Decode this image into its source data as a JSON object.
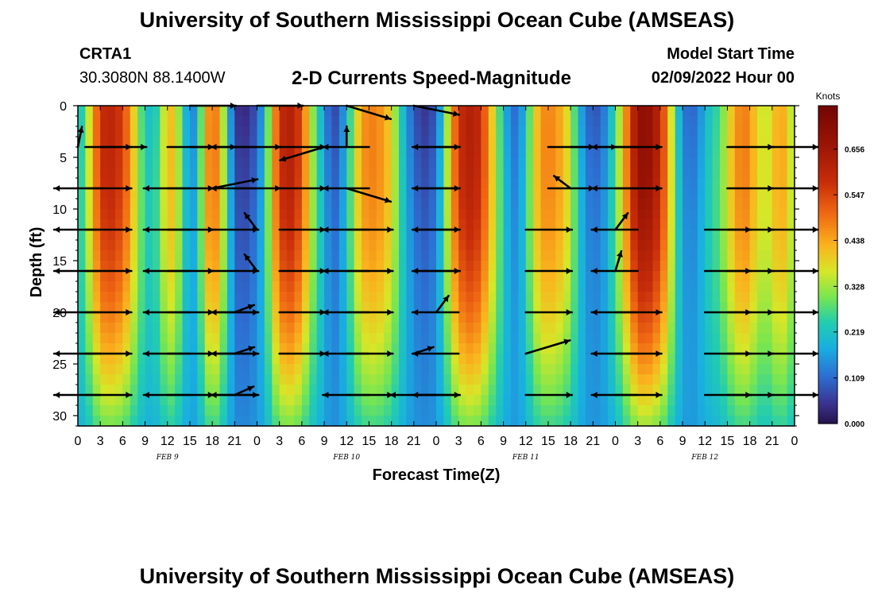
{
  "header": {
    "title": "University of Southern Mississippi Ocean Cube (AMSEAS)",
    "station": "CRTA1",
    "coords": "30.3080N  88.1400W",
    "plot_title": "2-D Currents Speed-Magnitude",
    "model_start_label": "Model Start Time",
    "model_start_value": "02/09/2022 Hour 00"
  },
  "footer": {
    "title": "University of Southern Mississippi Ocean Cube (AMSEAS)"
  },
  "chart_data": {
    "type": "heatmap",
    "title": "2-D Currents Speed-Magnitude",
    "xlabel": "Forecast Time(Z)",
    "ylabel": "Depth (ft)",
    "x_range_hours": [
      0,
      96
    ],
    "ylim": [
      0,
      31
    ],
    "y_inverted": true,
    "x_tick_labels": [
      "0",
      "3",
      "6",
      "9",
      "12",
      "15",
      "18",
      "21",
      "0",
      "3",
      "6",
      "9",
      "12",
      "15",
      "18",
      "21",
      "0",
      "3",
      "6",
      "9",
      "12",
      "15",
      "18",
      "21",
      "0",
      "3",
      "6",
      "9",
      "12",
      "15",
      "18",
      "21",
      "0"
    ],
    "y_ticks": [
      "0",
      "5",
      "10",
      "15",
      "20",
      "25",
      "30"
    ],
    "date_labels": [
      {
        "text": "FEB 9",
        "hour": 12
      },
      {
        "text": "FEB 10",
        "hour": 36
      },
      {
        "text": "FEB 11",
        "hour": 60
      },
      {
        "text": "FEB 12",
        "hour": 84
      }
    ],
    "colorbar": {
      "title": "Knots",
      "ticks": [
        "0.000",
        "0.109",
        "0.219",
        "0.328",
        "0.438",
        "0.547",
        "0.656"
      ],
      "range": [
        0,
        0.76
      ]
    },
    "speed_profile_knots_by_hour": [
      [
        0,
        0.2
      ],
      [
        1,
        0.3
      ],
      [
        2,
        0.45
      ],
      [
        3,
        0.6
      ],
      [
        4,
        0.64
      ],
      [
        5,
        0.62
      ],
      [
        6,
        0.58
      ],
      [
        7,
        0.48
      ],
      [
        8,
        0.34
      ],
      [
        9,
        0.24
      ],
      [
        10,
        0.21
      ],
      [
        11,
        0.3
      ],
      [
        12,
        0.44
      ],
      [
        13,
        0.42
      ],
      [
        14,
        0.26
      ],
      [
        15,
        0.13
      ],
      [
        16,
        0.18
      ],
      [
        17,
        0.42
      ],
      [
        18,
        0.55
      ],
      [
        19,
        0.45
      ],
      [
        20,
        0.25
      ],
      [
        21,
        0.06
      ],
      [
        22,
        0.03
      ],
      [
        23,
        0.05
      ],
      [
        24,
        0.1
      ],
      [
        25,
        0.2
      ],
      [
        26,
        0.42
      ],
      [
        27,
        0.6
      ],
      [
        28,
        0.66
      ],
      [
        29,
        0.64
      ],
      [
        30,
        0.55
      ],
      [
        31,
        0.4
      ],
      [
        32,
        0.26
      ],
      [
        33,
        0.17
      ],
      [
        34,
        0.06
      ],
      [
        35,
        0.1
      ],
      [
        36,
        0.2
      ],
      [
        37,
        0.35
      ],
      [
        38,
        0.47
      ],
      [
        39,
        0.5
      ],
      [
        40,
        0.5
      ],
      [
        41,
        0.46
      ],
      [
        42,
        0.4
      ],
      [
        43,
        0.28
      ],
      [
        44,
        0.16
      ],
      [
        45,
        0.1
      ],
      [
        46,
        0.05
      ],
      [
        47,
        0.06
      ],
      [
        48,
        0.1
      ],
      [
        49,
        0.25
      ],
      [
        50,
        0.45
      ],
      [
        51,
        0.6
      ],
      [
        52,
        0.65
      ],
      [
        53,
        0.66
      ],
      [
        54,
        0.6
      ],
      [
        55,
        0.48
      ],
      [
        56,
        0.35
      ],
      [
        57,
        0.22
      ],
      [
        58,
        0.12
      ],
      [
        59,
        0.12
      ],
      [
        60,
        0.22
      ],
      [
        61,
        0.38
      ],
      [
        62,
        0.48
      ],
      [
        63,
        0.5
      ],
      [
        64,
        0.48
      ],
      [
        65,
        0.44
      ],
      [
        66,
        0.36
      ],
      [
        67,
        0.22
      ],
      [
        68,
        0.12
      ],
      [
        69,
        0.09
      ],
      [
        70,
        0.1
      ],
      [
        71,
        0.17
      ],
      [
        72,
        0.28
      ],
      [
        73,
        0.42
      ],
      [
        74,
        0.58
      ],
      [
        75,
        0.72
      ],
      [
        76,
        0.74
      ],
      [
        77,
        0.7
      ],
      [
        78,
        0.62
      ],
      [
        79,
        0.48
      ],
      [
        80,
        0.28
      ],
      [
        81,
        0.14
      ],
      [
        82,
        0.1
      ],
      [
        83,
        0.13
      ],
      [
        84,
        0.2
      ],
      [
        85,
        0.25
      ],
      [
        86,
        0.28
      ],
      [
        87,
        0.38
      ],
      [
        88,
        0.46
      ],
      [
        89,
        0.52
      ],
      [
        90,
        0.48
      ],
      [
        91,
        0.4
      ],
      [
        92,
        0.36
      ],
      [
        93,
        0.4
      ],
      [
        94,
        0.48
      ],
      [
        95,
        0.42
      ],
      [
        96,
        0.32
      ]
    ],
    "vector_depths_ft": [
      0,
      4,
      8,
      12,
      16,
      20,
      24,
      28
    ],
    "vectors": [
      {
        "hour": 0,
        "depth": 4,
        "u": 0.2,
        "v": 1.0
      },
      {
        "hour": 1,
        "depth": 4,
        "u": 1.0,
        "v": 0.0
      },
      {
        "hour": 1,
        "depth": 8,
        "u": 1.0,
        "v": 0.0
      },
      {
        "hour": 1,
        "depth": 12,
        "u": 1.0,
        "v": 0.0
      },
      {
        "hour": 1,
        "depth": 16,
        "u": 1.0,
        "v": 0.0
      },
      {
        "hour": 1,
        "depth": 20,
        "u": 1.0,
        "v": 0.0
      },
      {
        "hour": 1,
        "depth": 24,
        "u": 1.0,
        "v": 0.0
      },
      {
        "hour": 1,
        "depth": 28,
        "u": 1.0,
        "v": 0.0
      },
      {
        "hour": 3,
        "depth": 4,
        "u": 1.0,
        "v": 0.0
      },
      {
        "hour": 3,
        "depth": 8,
        "u": -1.0,
        "v": 0.0
      },
      {
        "hour": 3,
        "depth": 12,
        "u": -1.0,
        "v": 0.0
      },
      {
        "hour": 3,
        "depth": 16,
        "u": -1.0,
        "v": 0.0
      },
      {
        "hour": 3,
        "depth": 20,
        "u": -1.0,
        "v": 0.0
      },
      {
        "hour": 3,
        "depth": 24,
        "u": -1.0,
        "v": 0.0
      },
      {
        "hour": 3,
        "depth": 28,
        "u": -1.0,
        "v": 0.0
      },
      {
        "hour": 12,
        "depth": 4,
        "u": 1.0,
        "v": 0.0
      },
      {
        "hour": 12,
        "depth": 8,
        "u": 1.0,
        "v": 0.0
      },
      {
        "hour": 12,
        "depth": 12,
        "u": 1.0,
        "v": 0.0
      },
      {
        "hour": 12,
        "depth": 16,
        "u": 1.0,
        "v": 0.0
      },
      {
        "hour": 12,
        "depth": 20,
        "u": 1.0,
        "v": 0.0
      },
      {
        "hour": 12,
        "depth": 24,
        "u": 1.0,
        "v": 0.0
      },
      {
        "hour": 12,
        "depth": 28,
        "u": 1.0,
        "v": 0.0
      },
      {
        "hour": 15,
        "depth": 0,
        "u": 1.0,
        "v": 0.0
      },
      {
        "hour": 15,
        "depth": 4,
        "u": 1.0,
        "v": 0.0
      },
      {
        "hour": 15,
        "depth": 8,
        "u": -1.0,
        "v": 0.0
      },
      {
        "hour": 15,
        "depth": 12,
        "u": -1.0,
        "v": 0.0
      },
      {
        "hour": 15,
        "depth": 16,
        "u": -1.0,
        "v": 0.0
      },
      {
        "hour": 15,
        "depth": 20,
        "u": -1.0,
        "v": 0.0
      },
      {
        "hour": 15,
        "depth": 24,
        "u": -1.0,
        "v": 0.0
      },
      {
        "hour": 15,
        "depth": 28,
        "u": -1.0,
        "v": 0.0
      },
      {
        "hour": 18,
        "depth": 8,
        "u": 1.0,
        "v": 0.2
      },
      {
        "hour": 18,
        "depth": 12,
        "u": 1.0,
        "v": 0.0
      },
      {
        "hour": 18,
        "depth": 16,
        "u": 1.0,
        "v": 0.0
      },
      {
        "hour": 18,
        "depth": 20,
        "u": 1.0,
        "v": 0.0
      },
      {
        "hour": 18,
        "depth": 24,
        "u": 1.0,
        "v": 0.0
      },
      {
        "hour": 18,
        "depth": 28,
        "u": 1.0,
        "v": 0.0
      },
      {
        "hour": 21,
        "depth": 4,
        "u": 1.0,
        "v": 0.0
      },
      {
        "hour": 21,
        "depth": 8,
        "u": 1.0,
        "v": 0.0
      },
      {
        "hour": 21,
        "depth": 20,
        "u": 0.8,
        "v": 0.3
      },
      {
        "hour": 21,
        "depth": 24,
        "u": 0.9,
        "v": 0.3
      },
      {
        "hour": 21,
        "depth": 28,
        "u": 0.9,
        "v": 0.4
      },
      {
        "hour": 24,
        "depth": 0,
        "u": 1.0,
        "v": 0.0
      },
      {
        "hour": 24,
        "depth": 4,
        "u": -1.0,
        "v": 0.0
      },
      {
        "hour": 24,
        "depth": 8,
        "u": -1.0,
        "v": 0.0
      },
      {
        "hour": 24,
        "depth": 12,
        "u": -0.6,
        "v": 0.8
      },
      {
        "hour": 24,
        "depth": 16,
        "u": -0.6,
        "v": 0.8
      },
      {
        "hour": 24,
        "depth": 20,
        "u": -1.0,
        "v": 0.0
      },
      {
        "hour": 24,
        "depth": 24,
        "u": -1.0,
        "v": 0.0
      },
      {
        "hour": 24,
        "depth": 28,
        "u": -1.0,
        "v": 0.0
      },
      {
        "hour": 27,
        "depth": 4,
        "u": 1.0,
        "v": 0.0
      },
      {
        "hour": 27,
        "depth": 8,
        "u": 1.0,
        "v": 0.0
      },
      {
        "hour": 27,
        "depth": 12,
        "u": 1.0,
        "v": 0.0
      },
      {
        "hour": 27,
        "depth": 16,
        "u": 1.0,
        "v": 0.0
      },
      {
        "hour": 27,
        "depth": 20,
        "u": 1.0,
        "v": 0.0
      },
      {
        "hour": 27,
        "depth": 24,
        "u": 1.0,
        "v": 0.0
      },
      {
        "hour": 33,
        "depth": 4,
        "u": -1.0,
        "v": -0.3
      },
      {
        "hour": 36,
        "depth": 0,
        "u": 1.0,
        "v": -0.3
      },
      {
        "hour": 36,
        "depth": 4,
        "u": 0.0,
        "v": 1.0
      },
      {
        "hour": 36,
        "depth": 8,
        "u": 1.0,
        "v": -0.3
      },
      {
        "hour": 36,
        "depth": 12,
        "u": 1.0,
        "v": 0.0
      },
      {
        "hour": 36,
        "depth": 16,
        "u": 1.0,
        "v": 0.0
      },
      {
        "hour": 36,
        "depth": 20,
        "u": 1.0,
        "v": 0.0
      },
      {
        "hour": 36,
        "depth": 24,
        "u": 1.0,
        "v": 0.0
      },
      {
        "hour": 36,
        "depth": 28,
        "u": 1.0,
        "v": 0.0
      },
      {
        "hour": 39,
        "depth": 4,
        "u": -1.0,
        "v": 0.0
      },
      {
        "hour": 39,
        "depth": 8,
        "u": -1.0,
        "v": 0.0
      },
      {
        "hour": 39,
        "depth": 12,
        "u": -1.0,
        "v": 0.0
      },
      {
        "hour": 39,
        "depth": 16,
        "u": -1.0,
        "v": 0.0
      },
      {
        "hour": 39,
        "depth": 20,
        "u": -1.0,
        "v": 0.0
      },
      {
        "hour": 39,
        "depth": 24,
        "u": -1.0,
        "v": 0.0
      },
      {
        "hour": 39,
        "depth": 28,
        "u": -1.0,
        "v": 0.0
      },
      {
        "hour": 45,
        "depth": 0,
        "u": 1.0,
        "v": -0.2
      },
      {
        "hour": 45,
        "depth": 4,
        "u": 1.0,
        "v": 0.0
      },
      {
        "hour": 45,
        "depth": 8,
        "u": 1.0,
        "v": 0.0
      },
      {
        "hour": 45,
        "depth": 12,
        "u": 1.0,
        "v": 0.0
      },
      {
        "hour": 45,
        "depth": 16,
        "u": 1.0,
        "v": 0.0
      },
      {
        "hour": 45,
        "depth": 24,
        "u": 0.9,
        "v": 0.3
      },
      {
        "hour": 45,
        "depth": 28,
        "u": 1.0,
        "v": 0.0
      },
      {
        "hour": 48,
        "depth": 20,
        "u": 0.6,
        "v": 0.8
      },
      {
        "hour": 48,
        "depth": 28,
        "u": -1.0,
        "v": 0.0
      },
      {
        "hour": 51,
        "depth": 4,
        "u": -1.0,
        "v": 0.0
      },
      {
        "hour": 51,
        "depth": 8,
        "u": -1.0,
        "v": 0.0
      },
      {
        "hour": 51,
        "depth": 12,
        "u": -1.0,
        "v": 0.0
      },
      {
        "hour": 51,
        "depth": 16,
        "u": -1.0,
        "v": 0.0
      },
      {
        "hour": 51,
        "depth": 20,
        "u": -1.0,
        "v": 0.0
      },
      {
        "hour": 51,
        "depth": 24,
        "u": -1.0,
        "v": 0.0
      },
      {
        "hour": 51,
        "depth": 28,
        "u": -1.0,
        "v": 0.0
      },
      {
        "hour": 60,
        "depth": 12,
        "u": 1.0,
        "v": 0.0
      },
      {
        "hour": 60,
        "depth": 16,
        "u": 1.0,
        "v": 0.0
      },
      {
        "hour": 60,
        "depth": 20,
        "u": 1.0,
        "v": 0.0
      },
      {
        "hour": 60,
        "depth": 24,
        "u": 1.0,
        "v": 0.3
      },
      {
        "hour": 60,
        "depth": 28,
        "u": 1.0,
        "v": 0.0
      },
      {
        "hour": 63,
        "depth": 4,
        "u": 1.0,
        "v": 0.0
      },
      {
        "hour": 63,
        "depth": 8,
        "u": 1.0,
        "v": 0.0
      },
      {
        "hour": 66,
        "depth": 4,
        "u": 1.0,
        "v": 0.0
      },
      {
        "hour": 66,
        "depth": 8,
        "u": -0.8,
        "v": 0.6
      },
      {
        "hour": 72,
        "depth": 4,
        "u": 1.0,
        "v": 0.0
      },
      {
        "hour": 72,
        "depth": 8,
        "u": 1.0,
        "v": 0.0
      },
      {
        "hour": 72,
        "depth": 12,
        "u": 0.6,
        "v": 0.8
      },
      {
        "hour": 72,
        "depth": 16,
        "u": 0.3,
        "v": 1.0
      },
      {
        "hour": 72,
        "depth": 20,
        "u": 1.0,
        "v": 0.0
      },
      {
        "hour": 72,
        "depth": 24,
        "u": 1.0,
        "v": 0.0
      },
      {
        "hour": 72,
        "depth": 28,
        "u": 1.0,
        "v": 0.0
      },
      {
        "hour": 75,
        "depth": 4,
        "u": -1.0,
        "v": 0.0
      },
      {
        "hour": 75,
        "depth": 8,
        "u": -1.0,
        "v": 0.0
      },
      {
        "hour": 75,
        "depth": 12,
        "u": -1.0,
        "v": 0.0
      },
      {
        "hour": 75,
        "depth": 16,
        "u": -1.0,
        "v": 0.0
      },
      {
        "hour": 75,
        "depth": 20,
        "u": -1.0,
        "v": 0.0
      },
      {
        "hour": 75,
        "depth": 24,
        "u": -1.0,
        "v": 0.0
      },
      {
        "hour": 75,
        "depth": 28,
        "u": -1.0,
        "v": 0.0
      },
      {
        "hour": 84,
        "depth": 12,
        "u": 1.0,
        "v": 0.0
      },
      {
        "hour": 84,
        "depth": 16,
        "u": 1.0,
        "v": 0.0
      },
      {
        "hour": 84,
        "depth": 20,
        "u": 1.0,
        "v": 0.0
      },
      {
        "hour": 84,
        "depth": 24,
        "u": 1.0,
        "v": 0.0
      },
      {
        "hour": 84,
        "depth": 28,
        "u": 1.0,
        "v": 0.0
      },
      {
        "hour": 87,
        "depth": 4,
        "u": 1.0,
        "v": 0.0
      },
      {
        "hour": 87,
        "depth": 8,
        "u": 1.0,
        "v": 0.0
      },
      {
        "hour": 87,
        "depth": 12,
        "u": 1.0,
        "v": 0.0
      },
      {
        "hour": 87,
        "depth": 16,
        "u": 1.0,
        "v": 0.0
      },
      {
        "hour": 87,
        "depth": 20,
        "u": 1.0,
        "v": 0.0
      },
      {
        "hour": 87,
        "depth": 24,
        "u": 1.0,
        "v": 0.0
      },
      {
        "hour": 87,
        "depth": 28,
        "u": 1.0,
        "v": 0.0
      },
      {
        "hour": 93,
        "depth": 4,
        "u": 1.0,
        "v": 0.0
      },
      {
        "hour": 93,
        "depth": 8,
        "u": 1.0,
        "v": 0.0
      },
      {
        "hour": 93,
        "depth": 12,
        "u": 1.0,
        "v": 0.0
      },
      {
        "hour": 93,
        "depth": 16,
        "u": 1.0,
        "v": 0.0
      },
      {
        "hour": 93,
        "depth": 20,
        "u": 1.0,
        "v": 0.0
      },
      {
        "hour": 93,
        "depth": 24,
        "u": 1.0,
        "v": 0.0
      },
      {
        "hour": 93,
        "depth": 28,
        "u": 1.0,
        "v": 0.0
      }
    ]
  }
}
